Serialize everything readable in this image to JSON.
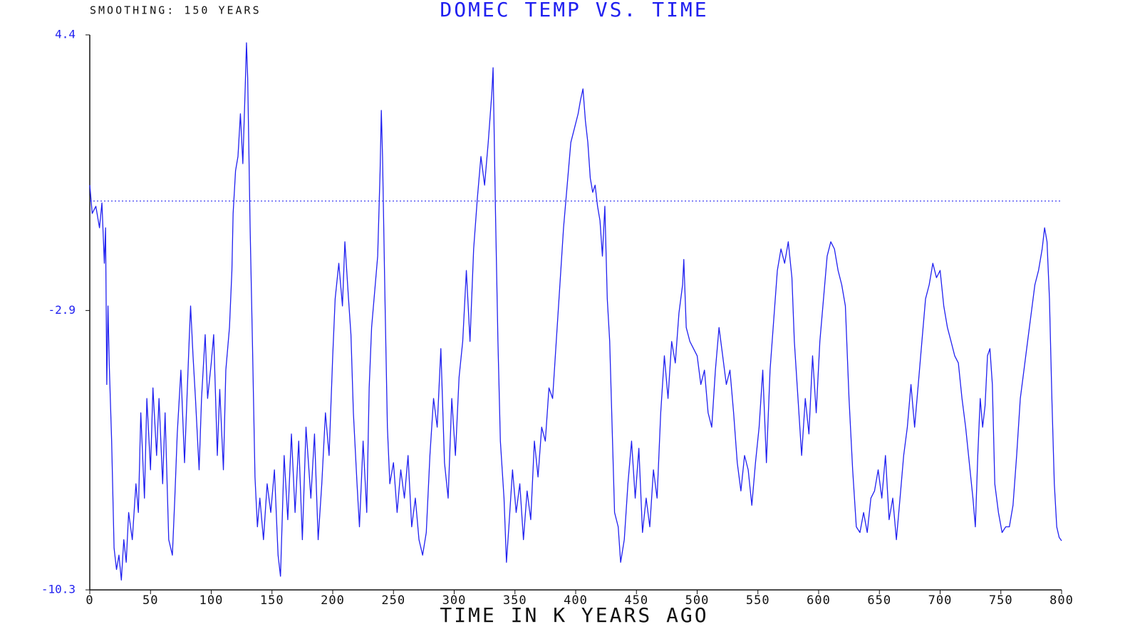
{
  "chart_data": {
    "type": "line",
    "title": "DOMEC TEMP VS. TIME",
    "subtitle": "SMOOTHING: 150 YEARS",
    "x_label": "TIME IN K YEARS AGO",
    "color": "#2020f0",
    "hline": 0,
    "xlim": [
      0,
      800
    ],
    "ylim": [
      -10.3,
      4.4
    ],
    "xticks": [
      0,
      50,
      100,
      150,
      200,
      250,
      300,
      350,
      400,
      450,
      500,
      550,
      600,
      650,
      700,
      750,
      800
    ],
    "yticks": [
      -10.3,
      -2.9,
      4.4
    ],
    "x": [
      0,
      2,
      5,
      8,
      10,
      12,
      13,
      14,
      15,
      16,
      18,
      20,
      22,
      24,
      26,
      28,
      30,
      32,
      35,
      38,
      40,
      42,
      45,
      47,
      50,
      52,
      55,
      57,
      60,
      62,
      65,
      68,
      70,
      72,
      75,
      78,
      80,
      82,
      83,
      85,
      87,
      90,
      92,
      95,
      97,
      100,
      102,
      105,
      107,
      110,
      112,
      115,
      117,
      118,
      120,
      122,
      124,
      126,
      128,
      129,
      130,
      132,
      134,
      136,
      138,
      140,
      143,
      146,
      149,
      152,
      155,
      157,
      160,
      163,
      166,
      169,
      172,
      175,
      178,
      182,
      185,
      188,
      191,
      194,
      197,
      200,
      202,
      205,
      208,
      210,
      213,
      215,
      217,
      220,
      222,
      225,
      228,
      230,
      232,
      235,
      237,
      239,
      240,
      241,
      243,
      245,
      247,
      250,
      253,
      256,
      259,
      262,
      265,
      268,
      271,
      274,
      277,
      280,
      283,
      286,
      289,
      292,
      295,
      298,
      301,
      304,
      307,
      310,
      313,
      316,
      319,
      322,
      325,
      328,
      331,
      332,
      334,
      336,
      338,
      341,
      343,
      345,
      348,
      351,
      354,
      357,
      360,
      363,
      366,
      369,
      372,
      375,
      378,
      381,
      384,
      387,
      390,
      393,
      396,
      399,
      402,
      404,
      406,
      408,
      410,
      412,
      414,
      416,
      418,
      420,
      422,
      424,
      426,
      428,
      430,
      432,
      435,
      437,
      440,
      443,
      446,
      449,
      452,
      455,
      458,
      461,
      464,
      467,
      470,
      473,
      476,
      479,
      482,
      485,
      488,
      489,
      491,
      494,
      497,
      500,
      503,
      506,
      509,
      512,
      515,
      518,
      521,
      524,
      527,
      530,
      533,
      536,
      539,
      542,
      545,
      548,
      551,
      554,
      557,
      560,
      563,
      566,
      569,
      572,
      575,
      578,
      580,
      583,
      586,
      589,
      592,
      595,
      598,
      601,
      604,
      607,
      610,
      613,
      616,
      619,
      622,
      625,
      628,
      631,
      634,
      637,
      640,
      643,
      646,
      649,
      652,
      655,
      658,
      661,
      664,
      667,
      670,
      673,
      676,
      679,
      682,
      685,
      688,
      691,
      694,
      697,
      700,
      703,
      706,
      709,
      712,
      715,
      718,
      721,
      724,
      727,
      729,
      731,
      733,
      735,
      737,
      739,
      741,
      743,
      745,
      748,
      751,
      754,
      757,
      760,
      763,
      766,
      769,
      772,
      775,
      778,
      781,
      784,
      786,
      788,
      790,
      792,
      794,
      796,
      798,
      800
    ],
    "values": [
      0.42,
      -0.33,
      -0.14,
      -0.71,
      -0.05,
      -1.65,
      -0.71,
      -4.86,
      -2.78,
      -4.29,
      -6.36,
      -9.19,
      -9.76,
      -9.38,
      -10.04,
      -8.97,
      -9.57,
      -8.25,
      -8.97,
      -7.49,
      -8.25,
      -5.61,
      -7.87,
      -5.23,
      -7.12,
      -4.95,
      -6.74,
      -5.23,
      -7.49,
      -5.61,
      -8.97,
      -9.38,
      -7.87,
      -6.17,
      -4.48,
      -6.93,
      -5.23,
      -3.54,
      -2.78,
      -4.1,
      -5.23,
      -7.12,
      -5.23,
      -3.54,
      -5.23,
      -4.29,
      -3.54,
      -6.74,
      -4.99,
      -7.12,
      -4.48,
      -3.35,
      -1.84,
      -0.33,
      0.8,
      1.18,
      2.31,
      0.99,
      3.06,
      4.19,
      3.25,
      -0.71,
      -3.91,
      -7.31,
      -8.63,
      -7.87,
      -8.97,
      -7.49,
      -8.25,
      -7.12,
      -9.38,
      -9.94,
      -6.74,
      -8.44,
      -6.17,
      -8.25,
      -6.36,
      -8.97,
      -5.99,
      -7.87,
      -6.17,
      -8.97,
      -7.49,
      -5.61,
      -6.74,
      -4.1,
      -2.59,
      -1.65,
      -2.78,
      -1.08,
      -2.59,
      -3.54,
      -5.61,
      -7.49,
      -8.63,
      -6.36,
      -8.25,
      -4.95,
      -3.35,
      -2.22,
      -1.46,
      0.8,
      2.4,
      1.18,
      -2.59,
      -5.99,
      -7.49,
      -6.93,
      -8.25,
      -7.12,
      -7.87,
      -6.74,
      -8.63,
      -7.87,
      -8.97,
      -9.38,
      -8.78,
      -6.74,
      -5.23,
      -5.99,
      -3.91,
      -6.93,
      -7.87,
      -5.23,
      -6.74,
      -4.67,
      -3.72,
      -1.84,
      -3.72,
      -1.27,
      0.05,
      1.18,
      0.42,
      1.55,
      2.87,
      3.53,
      -0.33,
      -3.72,
      -6.36,
      -7.87,
      -9.57,
      -8.63,
      -7.12,
      -8.25,
      -7.49,
      -8.97,
      -7.68,
      -8.44,
      -6.36,
      -7.31,
      -5.99,
      -6.36,
      -4.95,
      -5.23,
      -3.72,
      -2.22,
      -0.71,
      0.42,
      1.55,
      1.93,
      2.31,
      2.68,
      2.97,
      2.12,
      1.55,
      0.61,
      0.23,
      0.42,
      -0.14,
      -0.52,
      -1.46,
      -0.14,
      -2.59,
      -3.72,
      -5.99,
      -8.25,
      -8.63,
      -9.57,
      -8.97,
      -7.49,
      -6.36,
      -7.87,
      -6.55,
      -8.78,
      -7.87,
      -8.63,
      -7.12,
      -7.87,
      -5.61,
      -4.1,
      -5.23,
      -3.72,
      -4.29,
      -2.97,
      -2.22,
      -1.55,
      -3.35,
      -3.72,
      -3.91,
      -4.1,
      -4.86,
      -4.48,
      -5.61,
      -5.99,
      -4.48,
      -3.35,
      -4.1,
      -4.86,
      -4.48,
      -5.61,
      -6.93,
      -7.68,
      -6.74,
      -7.12,
      -8.06,
      -6.93,
      -5.99,
      -4.48,
      -6.93,
      -4.48,
      -3.16,
      -1.84,
      -1.27,
      -1.65,
      -1.08,
      -2.03,
      -3.72,
      -5.23,
      -6.74,
      -5.23,
      -6.17,
      -4.1,
      -5.61,
      -3.72,
      -2.59,
      -1.46,
      -1.08,
      -1.27,
      -1.84,
      -2.22,
      -2.78,
      -5.23,
      -7.12,
      -8.63,
      -8.78,
      -8.25,
      -8.78,
      -7.87,
      -7.68,
      -7.12,
      -7.87,
      -6.74,
      -8.44,
      -7.87,
      -8.97,
      -7.87,
      -6.74,
      -5.99,
      -4.86,
      -5.99,
      -4.86,
      -3.72,
      -2.59,
      -2.22,
      -1.65,
      -2.03,
      -1.84,
      -2.78,
      -3.35,
      -3.72,
      -4.1,
      -4.29,
      -5.23,
      -5.99,
      -6.93,
      -7.87,
      -8.63,
      -6.74,
      -5.23,
      -5.99,
      -5.42,
      -4.1,
      -3.91,
      -4.86,
      -7.49,
      -8.25,
      -8.78,
      -8.63,
      -8.63,
      -8.06,
      -6.74,
      -5.23,
      -4.48,
      -3.72,
      -2.97,
      -2.22,
      -1.84,
      -1.27,
      -0.71,
      -1.08,
      -2.59,
      -5.23,
      -7.49,
      -8.63,
      -8.91,
      -9.0
    ]
  }
}
